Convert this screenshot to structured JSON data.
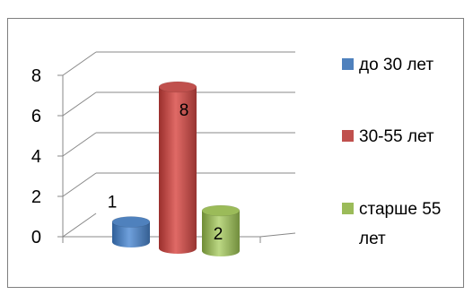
{
  "chart_data": {
    "type": "bar",
    "title": "",
    "xlabel": "",
    "ylabel": "",
    "ylim": [
      0,
      8
    ],
    "y_ticks": [
      "0",
      "2",
      "4",
      "6",
      "8"
    ],
    "grid": true,
    "legend_position": "right",
    "series": [
      {
        "name": "до 30 лет",
        "value": 1,
        "label": "1",
        "color": "#4f81bd"
      },
      {
        "name": "30-55 лет",
        "value": 8,
        "label": "8",
        "color": "#c0504d"
      },
      {
        "name": "старше 55",
        "name_line2": "лет",
        "value": 2,
        "label": "2",
        "color": "#9bbb59"
      }
    ]
  }
}
